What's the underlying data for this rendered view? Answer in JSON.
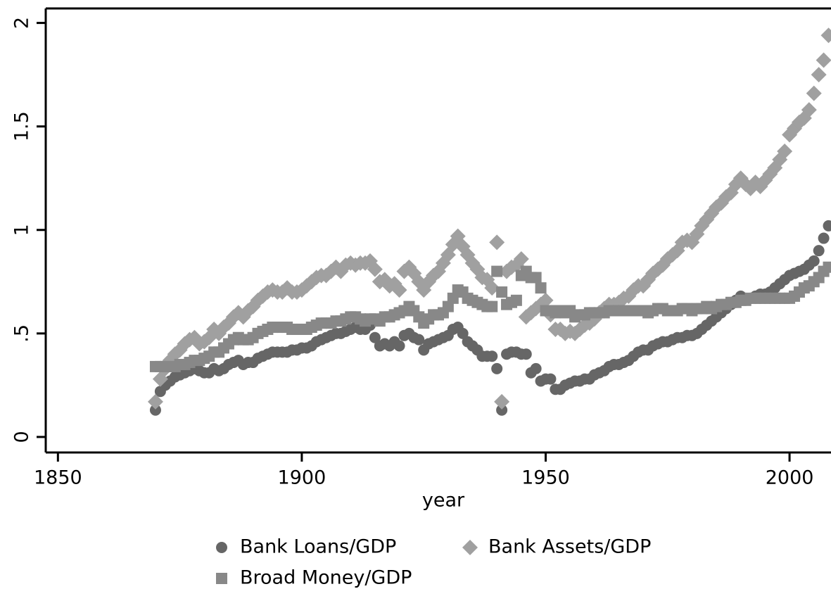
{
  "chart_data": {
    "type": "scatter",
    "xlabel": "year",
    "x": [
      1870,
      1871,
      1872,
      1873,
      1874,
      1875,
      1876,
      1877,
      1878,
      1879,
      1880,
      1881,
      1882,
      1883,
      1884,
      1885,
      1886,
      1887,
      1888,
      1889,
      1890,
      1891,
      1892,
      1893,
      1894,
      1895,
      1896,
      1897,
      1898,
      1899,
      1900,
      1901,
      1902,
      1903,
      1904,
      1905,
      1906,
      1907,
      1908,
      1909,
      1910,
      1911,
      1912,
      1913,
      1914,
      1915,
      1916,
      1917,
      1918,
      1919,
      1920,
      1921,
      1922,
      1923,
      1924,
      1925,
      1926,
      1927,
      1928,
      1929,
      1930,
      1931,
      1932,
      1933,
      1934,
      1935,
      1936,
      1937,
      1938,
      1939,
      1940,
      1941,
      1942,
      1943,
      1944,
      1945,
      1946,
      1947,
      1948,
      1949,
      1950,
      1951,
      1952,
      1953,
      1954,
      1955,
      1956,
      1957,
      1958,
      1959,
      1960,
      1961,
      1962,
      1963,
      1964,
      1965,
      1966,
      1967,
      1968,
      1969,
      1970,
      1971,
      1972,
      1973,
      1974,
      1975,
      1976,
      1977,
      1978,
      1979,
      1980,
      1981,
      1982,
      1983,
      1984,
      1985,
      1986,
      1987,
      1988,
      1989,
      1990,
      1991,
      1992,
      1993,
      1994,
      1995,
      1996,
      1997,
      1998,
      1999,
      2000,
      2001,
      2002,
      2003,
      2004,
      2005,
      2006,
      2007,
      2008
    ],
    "series": [
      {
        "name": "Bank Loans/GDP",
        "color": "#666666",
        "marker": "circle",
        "values": [
          0.13,
          0.22,
          0.25,
          0.27,
          0.29,
          0.3,
          0.31,
          0.32,
          0.33,
          0.32,
          0.31,
          0.31,
          0.33,
          0.32,
          0.33,
          0.35,
          0.36,
          0.37,
          0.35,
          0.36,
          0.36,
          0.38,
          0.39,
          0.4,
          0.41,
          0.41,
          0.41,
          0.41,
          0.42,
          0.42,
          0.43,
          0.43,
          0.44,
          0.46,
          0.47,
          0.48,
          0.49,
          0.5,
          0.5,
          0.51,
          0.52,
          0.53,
          0.52,
          0.52,
          0.54,
          0.48,
          0.44,
          0.45,
          0.44,
          0.46,
          0.44,
          0.49,
          0.5,
          0.48,
          0.47,
          0.42,
          0.45,
          0.46,
          0.47,
          0.48,
          0.49,
          0.52,
          0.53,
          0.5,
          0.46,
          0.44,
          0.42,
          0.39,
          0.39,
          0.39,
          0.33,
          0.13,
          0.4,
          0.41,
          0.41,
          0.4,
          0.4,
          0.31,
          0.33,
          0.27,
          0.28,
          0.28,
          0.23,
          0.23,
          0.25,
          0.26,
          0.27,
          0.27,
          0.28,
          0.28,
          0.3,
          0.31,
          0.32,
          0.34,
          0.35,
          0.35,
          0.36,
          0.37,
          0.39,
          0.41,
          0.42,
          0.42,
          0.44,
          0.45,
          0.46,
          0.46,
          0.47,
          0.48,
          0.48,
          0.49,
          0.49,
          0.5,
          0.52,
          0.54,
          0.56,
          0.58,
          0.6,
          0.62,
          0.64,
          0.66,
          0.68,
          0.67,
          0.67,
          0.68,
          0.69,
          0.69,
          0.7,
          0.72,
          0.74,
          0.76,
          0.78,
          0.79,
          0.8,
          0.81,
          0.83,
          0.85,
          0.9,
          0.96,
          1.02
        ]
      },
      {
        "name": "Bank Assets/GDP",
        "color": "#a0a0a0",
        "marker": "diamond",
        "values": [
          0.17,
          0.28,
          0.33,
          0.37,
          0.4,
          0.42,
          0.45,
          0.47,
          0.48,
          0.45,
          0.46,
          0.48,
          0.52,
          0.5,
          0.53,
          0.55,
          0.58,
          0.6,
          0.58,
          0.61,
          0.63,
          0.66,
          0.68,
          0.7,
          0.71,
          0.7,
          0.7,
          0.72,
          0.7,
          0.7,
          0.71,
          0.73,
          0.75,
          0.77,
          0.78,
          0.78,
          0.8,
          0.82,
          0.8,
          0.83,
          0.84,
          0.83,
          0.84,
          0.84,
          0.85,
          0.81,
          0.75,
          0.76,
          0.73,
          0.74,
          0.71,
          0.8,
          0.82,
          0.79,
          0.75,
          0.71,
          0.75,
          0.78,
          0.8,
          0.84,
          0.88,
          0.93,
          0.97,
          0.92,
          0.88,
          0.84,
          0.81,
          0.77,
          0.76,
          0.72,
          0.94,
          0.17,
          0.8,
          0.82,
          0.83,
          0.86,
          0.58,
          0.6,
          0.62,
          0.64,
          0.66,
          0.59,
          0.52,
          0.52,
          0.5,
          0.51,
          0.5,
          0.52,
          0.54,
          0.55,
          0.57,
          0.6,
          0.62,
          0.64,
          0.64,
          0.65,
          0.67,
          0.68,
          0.71,
          0.73,
          0.73,
          0.76,
          0.79,
          0.81,
          0.83,
          0.86,
          0.88,
          0.9,
          0.94,
          0.95,
          0.94,
          0.98,
          1.02,
          1.05,
          1.08,
          1.11,
          1.13,
          1.16,
          1.18,
          1.22,
          1.25,
          1.22,
          1.2,
          1.23,
          1.21,
          1.24,
          1.27,
          1.3,
          1.34,
          1.38,
          1.46,
          1.49,
          1.52,
          1.54,
          1.58,
          1.66,
          1.75,
          1.82,
          1.94
        ]
      },
      {
        "name": "Broad Money/GDP",
        "color": "#888888",
        "marker": "square",
        "values": [
          0.34,
          0.34,
          0.34,
          0.34,
          0.34,
          0.35,
          0.35,
          0.36,
          0.37,
          0.37,
          0.38,
          0.39,
          0.41,
          0.41,
          0.43,
          0.45,
          0.47,
          0.48,
          0.47,
          0.47,
          0.48,
          0.5,
          0.51,
          0.52,
          0.53,
          0.53,
          0.53,
          0.53,
          0.52,
          0.52,
          0.52,
          0.52,
          0.53,
          0.54,
          0.55,
          0.55,
          0.55,
          0.56,
          0.56,
          0.57,
          0.58,
          0.58,
          0.57,
          0.56,
          0.57,
          0.57,
          0.56,
          0.58,
          0.58,
          0.59,
          0.6,
          0.61,
          0.63,
          0.61,
          0.58,
          0.55,
          0.57,
          0.59,
          0.59,
          0.6,
          0.63,
          0.67,
          0.71,
          0.7,
          0.67,
          0.66,
          0.65,
          0.64,
          0.63,
          0.63,
          0.8,
          0.7,
          0.64,
          0.65,
          0.66,
          0.78,
          0.8,
          0.77,
          0.77,
          0.72,
          0.61,
          0.61,
          0.6,
          0.61,
          0.6,
          0.61,
          0.58,
          0.59,
          0.59,
          0.6,
          0.6,
          0.6,
          0.6,
          0.61,
          0.61,
          0.61,
          0.61,
          0.61,
          0.61,
          0.61,
          0.61,
          0.6,
          0.61,
          0.62,
          0.62,
          0.61,
          0.61,
          0.61,
          0.62,
          0.62,
          0.61,
          0.62,
          0.62,
          0.63,
          0.62,
          0.63,
          0.64,
          0.64,
          0.65,
          0.65,
          0.66,
          0.66,
          0.67,
          0.67,
          0.67,
          0.67,
          0.67,
          0.67,
          0.67,
          0.67,
          0.67,
          0.68,
          0.7,
          0.72,
          0.73,
          0.75,
          0.77,
          0.8,
          0.82
        ]
      }
    ],
    "xlim": [
      1847.5,
      2008.5
    ],
    "xticks": [
      1850,
      1900,
      1950,
      2000
    ],
    "ylim": [
      -0.075,
      2.07
    ],
    "yticks": [
      0,
      {
        "value": 0.5,
        "label": ".5"
      },
      1,
      1.5,
      2
    ],
    "legend": "bottom"
  }
}
